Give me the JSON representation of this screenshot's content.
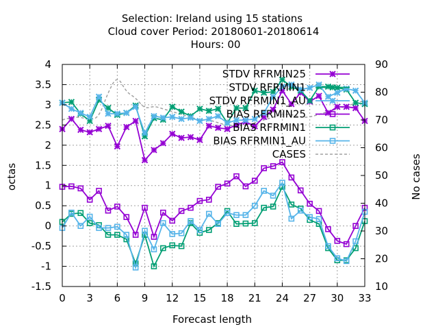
{
  "title_lines": [
    "Selection: Ireland using    15 stations",
    "Cloud cover   Period: 20180601-20180614",
    "Hours:  00"
  ],
  "chart_data": {
    "type": "line",
    "xlabel": "Forecast length",
    "ylabel": "octas",
    "y2label": "No cases",
    "xlim": [
      0,
      33
    ],
    "ylim": [
      -1.5,
      4
    ],
    "y2lim": [
      10,
      90
    ],
    "x_ticks": [
      0,
      3,
      6,
      9,
      12,
      15,
      18,
      21,
      24,
      27,
      30,
      33
    ],
    "y_ticks": [
      "-1.5",
      "-1",
      "-0.5",
      "0",
      "0.5",
      "1",
      "1.5",
      "2",
      "2.5",
      "3",
      "3.5",
      "4"
    ],
    "y2_ticks": [
      "10",
      "20",
      "30",
      "40",
      "50",
      "60",
      "70",
      "80",
      "90"
    ],
    "grid": true,
    "legend_position": "top-right",
    "x": [
      0,
      1,
      2,
      3,
      4,
      5,
      6,
      7,
      8,
      9,
      10,
      11,
      12,
      13,
      14,
      15,
      16,
      17,
      18,
      19,
      20,
      21,
      22,
      23,
      24,
      25,
      26,
      27,
      28,
      29,
      30,
      31,
      32,
      33
    ],
    "series": [
      {
        "name": "STDV RFRMIN25",
        "axis": "y",
        "color": "#9400d3",
        "marker": "x",
        "values": [
          2.4,
          2.65,
          2.38,
          2.32,
          2.4,
          2.48,
          1.97,
          2.45,
          2.6,
          1.63,
          1.88,
          2.05,
          2.28,
          2.18,
          2.2,
          2.13,
          2.48,
          2.43,
          2.4,
          2.5,
          2.58,
          2.47,
          2.7,
          2.88,
          3.35,
          3.02,
          3.3,
          3.08,
          3.22,
          2.8,
          2.95,
          2.95,
          2.92,
          2.6
        ]
      },
      {
        "name": "STDV RFRMIN1",
        "axis": "y",
        "color": "#009e73",
        "marker": "x",
        "values": [
          3.05,
          3.07,
          2.78,
          2.6,
          3.12,
          2.92,
          2.75,
          2.8,
          2.98,
          2.22,
          2.67,
          2.63,
          2.95,
          2.83,
          2.72,
          2.9,
          2.85,
          2.9,
          2.55,
          2.92,
          2.92,
          3.35,
          3.3,
          3.32,
          3.62,
          3.45,
          3.35,
          3.1,
          3.45,
          3.45,
          3.42,
          3.38,
          3.05,
          3.02
        ]
      },
      {
        "name": "STDV RFRMIN1_AU",
        "axis": "y",
        "color": "#56b4e9",
        "marker": "x",
        "values": [
          3.05,
          2.9,
          2.8,
          2.7,
          3.2,
          2.78,
          2.78,
          2.8,
          2.95,
          2.3,
          2.72,
          2.68,
          2.7,
          2.65,
          2.68,
          2.6,
          2.65,
          2.72,
          2.55,
          2.62,
          2.62,
          2.65,
          2.8,
          3.2,
          3.45,
          3.5,
          3.38,
          3.42,
          3.5,
          3.2,
          3.3,
          3.4,
          3.35,
          3.05
        ]
      },
      {
        "name": "BIAS RFRMIN25",
        "axis": "y",
        "color": "#9400d3",
        "marker": "square",
        "values": [
          0.97,
          0.98,
          0.93,
          0.65,
          0.87,
          0.38,
          0.48,
          0.22,
          -0.22,
          0.45,
          -0.27,
          0.33,
          0.13,
          0.37,
          0.45,
          0.62,
          0.65,
          0.97,
          1.05,
          1.23,
          0.98,
          1.12,
          1.43,
          1.48,
          1.58,
          1.2,
          0.88,
          0.55,
          0.37,
          -0.08,
          -0.37,
          -0.45,
          0.0,
          0.45
        ]
      },
      {
        "name": "BIAS RFRMIN1",
        "axis": "y",
        "color": "#009e73",
        "marker": "square",
        "values": [
          0.1,
          0.3,
          0.32,
          0.07,
          0.02,
          -0.22,
          -0.22,
          -0.33,
          -0.93,
          -0.22,
          -1.0,
          -0.55,
          -0.48,
          -0.5,
          0.07,
          -0.17,
          -0.1,
          0.07,
          0.37,
          0.05,
          0.06,
          0.07,
          0.45,
          0.48,
          0.97,
          0.53,
          0.43,
          0.15,
          0.05,
          -0.55,
          -0.85,
          -0.85,
          -0.55,
          0.12
        ]
      },
      {
        "name": "BIAS RFRMIN1_AU",
        "axis": "y",
        "color": "#56b4e9",
        "marker": "square",
        "values": [
          -0.05,
          0.33,
          0.0,
          0.23,
          -0.05,
          -0.05,
          -0.02,
          -0.22,
          -1.03,
          -0.12,
          -0.58,
          0.07,
          -0.2,
          -0.18,
          0.12,
          -0.1,
          0.3,
          0.05,
          0.32,
          0.27,
          0.27,
          0.5,
          0.87,
          0.75,
          1.07,
          0.18,
          0.38,
          0.22,
          0.17,
          -0.5,
          -0.8,
          -0.87,
          -0.38,
          0.35
        ]
      },
      {
        "name": "CASES",
        "axis": "y2",
        "color": "#a0a0a0",
        "marker": "none",
        "dashed": true,
        "values": [
          70,
          71,
          71,
          70,
          71,
          80,
          86,
          80,
          78,
          74,
          75,
          74,
          73,
          72,
          71,
          70,
          70,
          69,
          68,
          68,
          68,
          69,
          70,
          71,
          72,
          72,
          71,
          71,
          72,
          73,
          74,
          75,
          76,
          77
        ]
      }
    ]
  }
}
